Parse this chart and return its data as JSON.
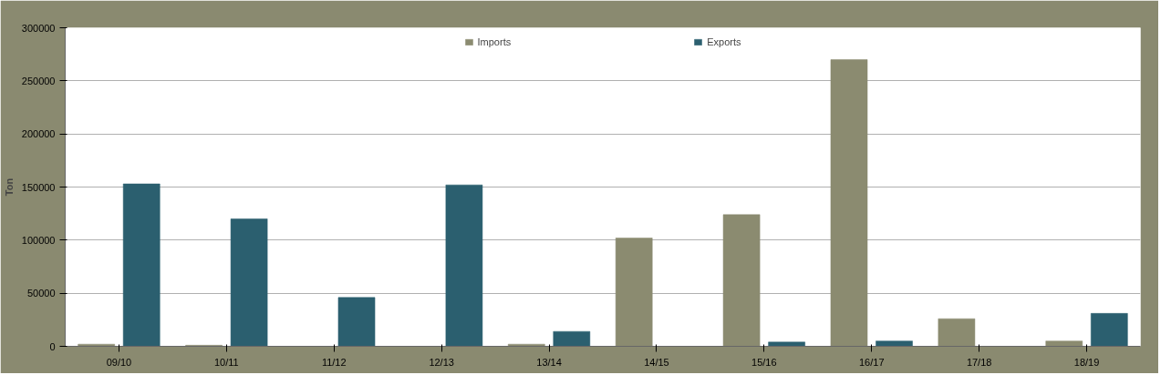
{
  "chart_data": {
    "type": "bar",
    "ylabel": "Ton",
    "categories": [
      "09/10",
      "10/11",
      "11/12",
      "12/13",
      "13/14",
      "14/15",
      "15/16",
      "16/17",
      "17/18",
      "18/19"
    ],
    "series": [
      {
        "name": "Imports",
        "color": "#8b8b70",
        "values": [
          2000,
          1000,
          0,
          0,
          2000,
          102000,
          124000,
          270000,
          26000,
          5000
        ]
      },
      {
        "name": "Exports",
        "color": "#2b5f6f",
        "values": [
          153000,
          120000,
          46000,
          152000,
          14000,
          0,
          4000,
          5000,
          0,
          31000
        ]
      }
    ],
    "ylim": [
      0,
      300000
    ],
    "yticks": [
      0,
      50000,
      100000,
      150000,
      200000,
      250000,
      300000
    ],
    "grid": "y",
    "legend": "top"
  }
}
